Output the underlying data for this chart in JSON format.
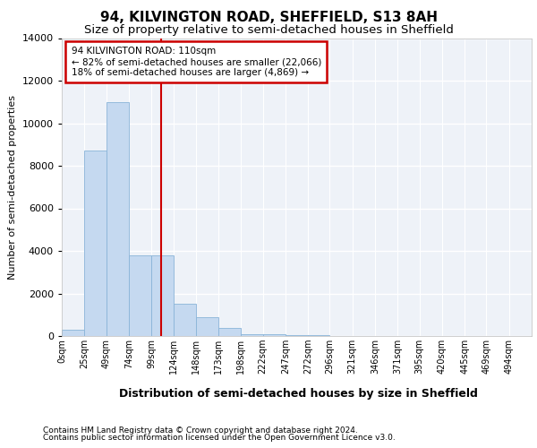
{
  "title1": "94, KILVINGTON ROAD, SHEFFIELD, S13 8AH",
  "title2": "Size of property relative to semi-detached houses in Sheffield",
  "xlabel": "Distribution of semi-detached houses by size in Sheffield",
  "ylabel": "Number of semi-detached properties",
  "footnote1": "Contains HM Land Registry data © Crown copyright and database right 2024.",
  "footnote2": "Contains public sector information licensed under the Open Government Licence v3.0.",
  "annotation_line1": "94 KILVINGTON ROAD: 110sqm",
  "annotation_line2": "← 82% of semi-detached houses are smaller (22,066)",
  "annotation_line3": "18% of semi-detached houses are larger (4,869) →",
  "property_size": 110,
  "bar_left_edges": [
    0,
    25,
    49,
    74,
    99,
    124,
    148,
    173,
    198,
    222,
    247,
    272,
    296,
    321,
    346,
    371,
    395,
    420,
    445,
    469
  ],
  "bar_widths": [
    25,
    24,
    25,
    25,
    25,
    24,
    25,
    25,
    24,
    25,
    25,
    24,
    25,
    25,
    25,
    24,
    25,
    25,
    24,
    25
  ],
  "bar_heights": [
    300,
    8700,
    11000,
    3800,
    3800,
    1500,
    900,
    400,
    100,
    100,
    50,
    50,
    20,
    10,
    5,
    3,
    2,
    1,
    1,
    1
  ],
  "bar_color": "#c5d9f0",
  "bar_edgecolor": "#8ab4d8",
  "tick_labels": [
    "0sqm",
    "25sqm",
    "49sqm",
    "74sqm",
    "99sqm",
    "124sqm",
    "148sqm",
    "173sqm",
    "198sqm",
    "222sqm",
    "247sqm",
    "272sqm",
    "296sqm",
    "321sqm",
    "346sqm",
    "371sqm",
    "395sqm",
    "420sqm",
    "445sqm",
    "469sqm",
    "494sqm"
  ],
  "tick_positions": [
    0,
    25,
    49,
    74,
    99,
    124,
    148,
    173,
    198,
    222,
    247,
    272,
    296,
    321,
    346,
    371,
    395,
    420,
    445,
    469,
    494
  ],
  "ylim": [
    0,
    14000
  ],
  "yticks": [
    0,
    2000,
    4000,
    6000,
    8000,
    10000,
    12000,
    14000
  ],
  "xlim_max": 519,
  "red_line_x": 110,
  "background_color": "#eef2f8",
  "grid_color": "#ffffff",
  "annotation_box_facecolor": "#ffffff",
  "annotation_box_edgecolor": "#cc0000",
  "title1_fontsize": 11,
  "title2_fontsize": 9.5,
  "ylabel_fontsize": 8,
  "xlabel_fontsize": 9,
  "tick_fontsize": 7,
  "ytick_fontsize": 8,
  "footnote_fontsize": 6.5
}
